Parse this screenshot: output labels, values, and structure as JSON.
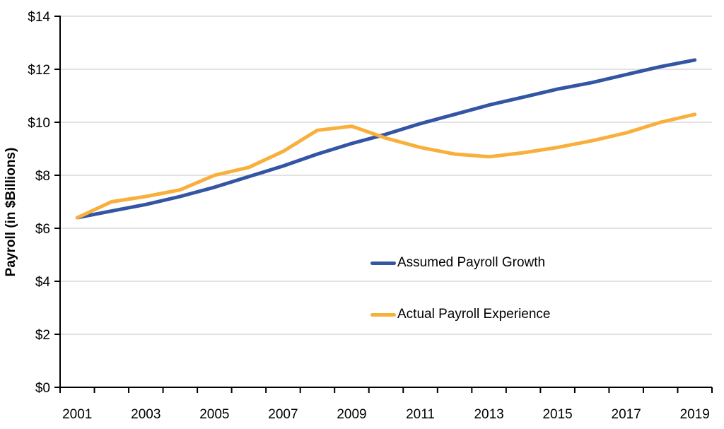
{
  "chart_data": {
    "type": "line",
    "title": "",
    "xlabel": "",
    "ylabel": "Payroll (in $Billions)",
    "categories": [
      2001,
      2002,
      2003,
      2004,
      2005,
      2006,
      2007,
      2008,
      2009,
      2010,
      2011,
      2012,
      2013,
      2014,
      2015,
      2016,
      2017,
      2018,
      2019
    ],
    "x_tick_labels": [
      "2001",
      "2003",
      "2005",
      "2007",
      "2009",
      "2011",
      "2013",
      "2015",
      "2017",
      "2019"
    ],
    "x_label_step": 2,
    "y_ticks": [
      0,
      2,
      4,
      6,
      8,
      10,
      12,
      14
    ],
    "y_tick_prefix": "$",
    "ylim": [
      0,
      14
    ],
    "grid": "horizontal",
    "gridline_color": "#d9d9d9",
    "axis_color": "#000000",
    "tick_label_color": "#000000",
    "legend_position": "inside-center-right",
    "series": [
      {
        "name": "Assumed Payroll Growth",
        "color": "#3355a3",
        "values": [
          6.4,
          6.65,
          6.9,
          7.2,
          7.55,
          7.95,
          8.35,
          8.8,
          9.2,
          9.55,
          9.95,
          10.3,
          10.65,
          10.95,
          11.25,
          11.5,
          11.8,
          12.1,
          12.35
        ]
      },
      {
        "name": "Actual Payroll Experience",
        "color": "#f9af3c",
        "values": [
          6.4,
          7.0,
          7.2,
          7.45,
          8.0,
          8.3,
          8.9,
          9.7,
          9.85,
          9.4,
          9.05,
          8.8,
          8.7,
          8.85,
          9.05,
          9.3,
          9.6,
          10.0,
          10.3
        ]
      }
    ]
  }
}
